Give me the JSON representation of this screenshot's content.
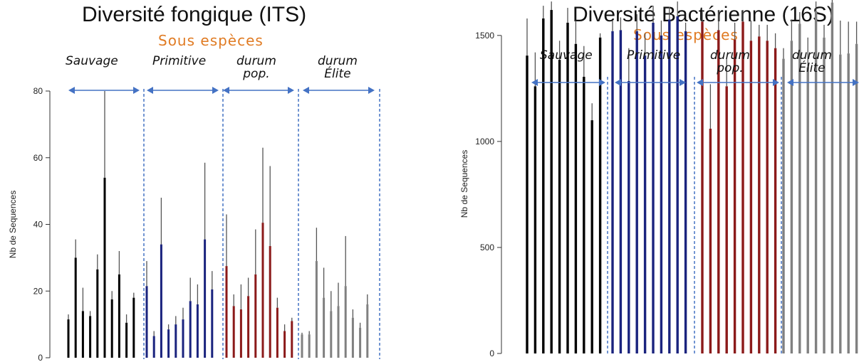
{
  "chart_data": [
    {
      "type": "bar",
      "title": "Diversité fongique (ITS)",
      "subtitle": "Sous espèces",
      "ylabel": "Nb de Sequences",
      "xlabel": "",
      "ylim": [
        0,
        80
      ],
      "yticks": [
        "0",
        "20",
        "40",
        "60",
        "80"
      ],
      "groups": [
        {
          "label": "Sauvage",
          "color": "#000000",
          "values": [
            11.5,
            30,
            14,
            12.5,
            26.5,
            54,
            17.5,
            25,
            10.5,
            18
          ],
          "err_high": [
            13,
            35.5,
            21,
            14,
            31,
            80,
            20,
            32,
            13,
            19.5
          ]
        },
        {
          "label": "Primitive",
          "color": "#1a237e",
          "values": [
            21.5,
            6.5,
            34,
            8.5,
            10,
            11.5,
            17,
            16,
            35.5,
            20.5
          ],
          "err_high": [
            29,
            8,
            48,
            10,
            12.5,
            15,
            24,
            22,
            58.5,
            26
          ]
        },
        {
          "label": "durum pop.",
          "color": "#8b1a1a",
          "values": [
            27.5,
            15.5,
            14.5,
            18.5,
            25,
            40.5,
            33.5,
            15,
            8,
            11
          ],
          "err_high": [
            43,
            19,
            22,
            24,
            38.5,
            63,
            57.5,
            18,
            10,
            12
          ]
        },
        {
          "label": "durum Élite",
          "color": "#808080",
          "values": [
            7,
            7,
            29,
            18,
            14,
            15.5,
            21.5,
            12,
            9,
            16
          ],
          "err_high": [
            7.5,
            8,
            39,
            27,
            20,
            22.5,
            36.5,
            14.5,
            10.5,
            19
          ]
        }
      ]
    },
    {
      "type": "bar",
      "title": "Diversité Bactérienne (16S)",
      "subtitle": "Sous espèces",
      "ylabel": "Nb de Sequences",
      "xlabel": "",
      "ylim": [
        0,
        1600
      ],
      "yticks": [
        "0",
        "500",
        "1000",
        "1500"
      ],
      "groups": [
        {
          "label": "Sauvage",
          "color": "#000000",
          "values": [
            1405,
            1260,
            1580,
            1620,
            1385,
            1560,
            1460,
            1305,
            1100,
            1490
          ],
          "err_high": [
            1580,
            1420,
            1640,
            1660,
            1475,
            1630,
            1570,
            1450,
            1180,
            1510
          ]
        },
        {
          "label": "Primitive",
          "color": "#1a237e",
          "values": [
            1520,
            1525,
            1285,
            1520,
            1405,
            1560,
            1500,
            1575,
            1590,
            1520
          ],
          "err_high": [
            1570,
            1585,
            1440,
            1600,
            1510,
            1640,
            1570,
            1635,
            1660,
            1560
          ]
        },
        {
          "label": "durum pop.",
          "color": "#8b1a1a",
          "values": [
            1565,
            1060,
            1525,
            1260,
            1480,
            1565,
            1475,
            1495,
            1475,
            1440
          ],
          "err_high": [
            1610,
            1270,
            1620,
            1390,
            1560,
            1620,
            1570,
            1550,
            1550,
            1510
          ]
        },
        {
          "label": "durum Élite",
          "color": "#808080",
          "values": [
            1390,
            1475,
            1555,
            1350,
            1615,
            1490,
            1655,
            1410,
            1415,
            1460
          ],
          "err_high": [
            1440,
            1575,
            1610,
            1490,
            1660,
            1550,
            1670,
            1570,
            1565,
            1565
          ]
        }
      ]
    }
  ],
  "group_labels": [
    "Sauvage",
    "Primitive",
    "durum\npop.",
    "durum\nÉlite"
  ],
  "colors": {
    "subtitle": "#e07b23",
    "separator": "#4472c4",
    "arrow": "#4472c4"
  }
}
